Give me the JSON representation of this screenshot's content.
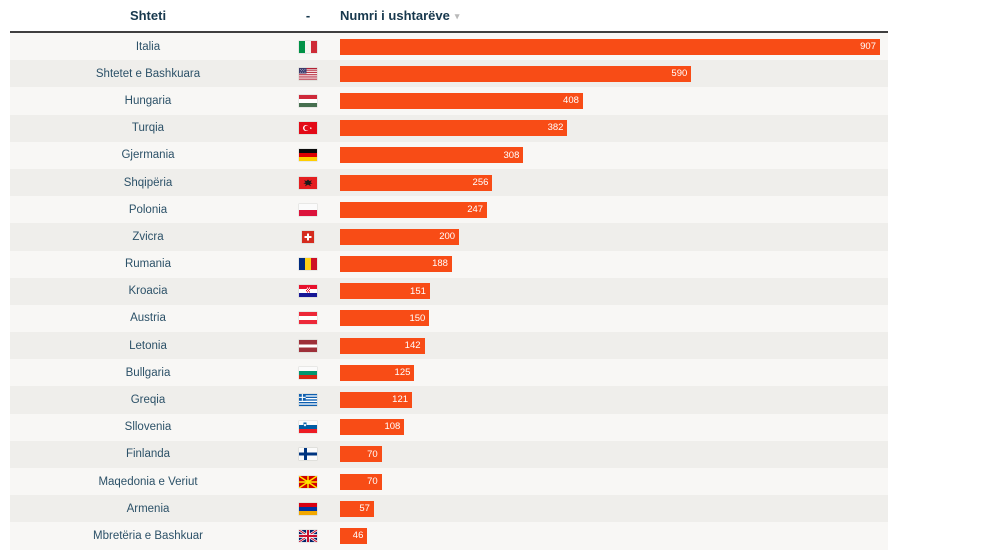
{
  "table": {
    "header": {
      "country": "Shteti",
      "flag": "-",
      "value": "Numri i ushtarëve",
      "sort_indicator": "▾"
    },
    "rows": [
      {
        "country": "Italia",
        "flag": "it",
        "value": 907
      },
      {
        "country": "Shtetet e Bashkuara",
        "flag": "us",
        "value": 590
      },
      {
        "country": "Hungaria",
        "flag": "hu",
        "value": 408
      },
      {
        "country": "Turqia",
        "flag": "tr",
        "value": 382
      },
      {
        "country": "Gjermania",
        "flag": "de",
        "value": 308
      },
      {
        "country": "Shqipëria",
        "flag": "al",
        "value": 256
      },
      {
        "country": "Polonia",
        "flag": "pl",
        "value": 247
      },
      {
        "country": "Zvicra",
        "flag": "ch",
        "value": 200
      },
      {
        "country": "Rumania",
        "flag": "ro",
        "value": 188
      },
      {
        "country": "Kroacia",
        "flag": "hr",
        "value": 151
      },
      {
        "country": "Austria",
        "flag": "at",
        "value": 150
      },
      {
        "country": "Letonia",
        "flag": "lv",
        "value": 142
      },
      {
        "country": "Bullgaria",
        "flag": "bg",
        "value": 125
      },
      {
        "country": "Greqia",
        "flag": "gr",
        "value": 121
      },
      {
        "country": "Sllovenia",
        "flag": "si",
        "value": 108
      },
      {
        "country": "Finlanda",
        "flag": "fi",
        "value": 70
      },
      {
        "country": "Maqedonia e Veriut",
        "flag": "mk",
        "value": 70
      },
      {
        "country": "Armenia",
        "flag": "am",
        "value": 57
      },
      {
        "country": "Mbretëria e Bashkuar",
        "flag": "gb",
        "value": 46
      }
    ]
  },
  "chart_data": {
    "type": "bar",
    "orientation": "horizontal",
    "title": "Numri i ushtarëve",
    "xlabel": "Numri i ushtarëve",
    "ylabel": "Shteti",
    "sort": "descending",
    "xlim": [
      0,
      907
    ],
    "grid": false,
    "bar_color": "#f84c16",
    "categories": [
      "Italia",
      "Shtetet e Bashkuara",
      "Hungaria",
      "Turqia",
      "Gjermania",
      "Shqipëria",
      "Polonia",
      "Zvicra",
      "Rumania",
      "Kroacia",
      "Austria",
      "Letonia",
      "Bullgaria",
      "Greqia",
      "Sllovenia",
      "Finlanda",
      "Maqedonia e Veriut",
      "Armenia",
      "Mbretëria e Bashkuar"
    ],
    "values": [
      907,
      590,
      408,
      382,
      308,
      256,
      247,
      200,
      188,
      151,
      150,
      142,
      125,
      121,
      108,
      70,
      70,
      57,
      46
    ]
  },
  "colors": {
    "bar": "#f84c16",
    "header_text": "#17384d",
    "country_text": "#2c5168",
    "row_even": "#f8f7f5",
    "row_odd": "#efeeeb",
    "header_rule": "#3f3f3f",
    "value_text": "#ffffff",
    "sort_icon": "#b9b9b9"
  }
}
